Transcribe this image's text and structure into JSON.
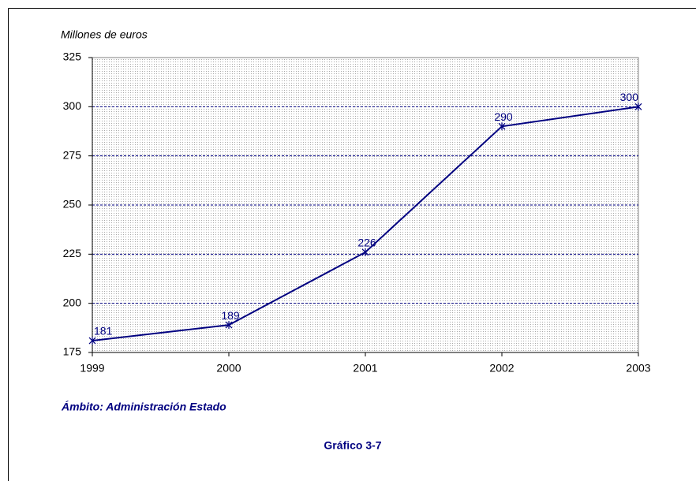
{
  "chart_data": {
    "type": "line",
    "ylabel": "Millones de euros",
    "subtitle": "Ámbito: Administración Estado",
    "caption": "Gráfico 3-7",
    "x": [
      1999,
      2000,
      2001,
      2002,
      2003
    ],
    "values": [
      181,
      189,
      226,
      290,
      300
    ],
    "color": "#000080",
    "xlim": [
      1999,
      2003
    ],
    "xticks": [
      1999,
      2000,
      2001,
      2002,
      2003
    ],
    "ylim": [
      175,
      325
    ],
    "yticks": [
      175,
      200,
      225,
      250,
      275,
      300,
      325
    ],
    "grid": true
  }
}
